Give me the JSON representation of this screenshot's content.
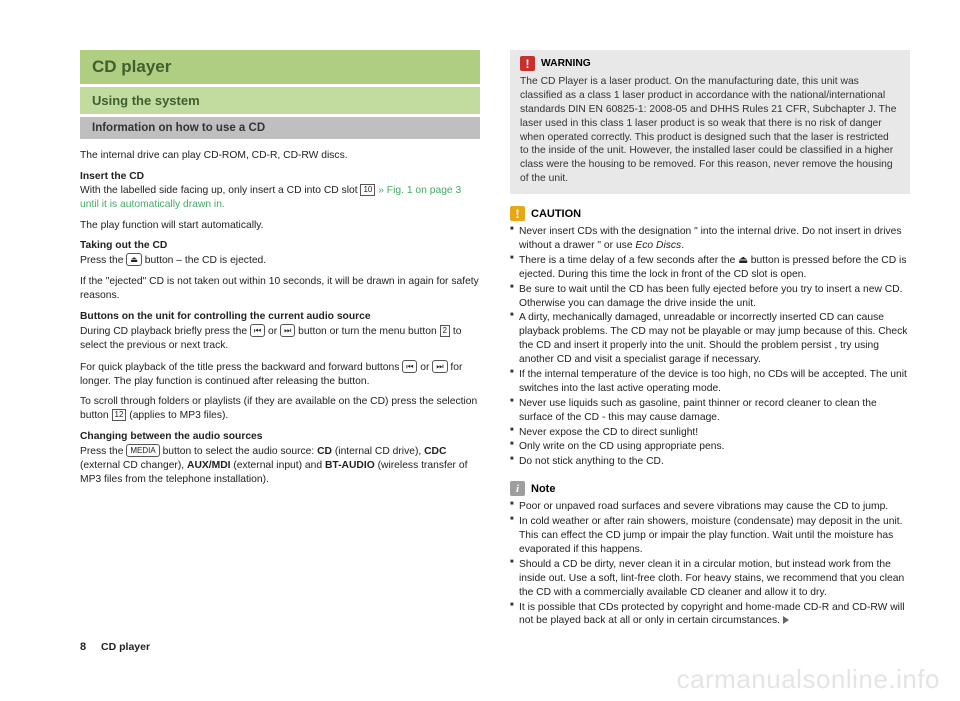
{
  "left": {
    "h1": "CD player",
    "h2": "Using the system",
    "h3": "Information on how to use a CD",
    "p1": "The internal drive can play CD-ROM, CD-R, CD-RW discs.",
    "insert_head": "Insert the CD",
    "insert_body_a": "With the labelled side facing up, only insert a CD into CD slot ",
    "insert_body_num": "10",
    "insert_body_b": " » Fig. 1 on page 3 until it is automatically drawn in.",
    "p2": "The play function will start automatically.",
    "takeout_head": "Taking out the CD",
    "takeout_body_a": "Press the ",
    "takeout_btn": "⏏",
    "takeout_body_b": " button – the CD is ejected.",
    "p3": "If the \"ejected\" CD is not taken out within 10 seconds, it will be drawn in again for safety reasons.",
    "btns_head": "Buttons on the unit for controlling the current audio source",
    "btns_body_a": "During CD playback briefly press the ",
    "btns_btn1": "⏮",
    "btns_mid": " or ",
    "btns_btn2": "⏭",
    "btns_body_b": " button or turn the menu button ",
    "btns_num": "2",
    "btns_body_c": " to select the previous or next track.",
    "p4_a": "For quick playback of the title press the backward and forward buttons ",
    "p4_b": " for longer. The play function is continued after releasing the button.",
    "p5_a": "To scroll through folders or playlists (if they are available on the CD) press the selection button ",
    "p5_num": "12",
    "p5_b": " (applies to MP3 files).",
    "chg_head": "Changing between the audio sources",
    "chg_body_a": "Press the ",
    "chg_btn": "MEDIA",
    "chg_body_b": " button to select the audio source: ",
    "chg_cd": "CD",
    "chg_cd2": " (internal CD drive), ",
    "chg_cdc": "CDC",
    "chg_cdc2": " (external CD changer), ",
    "chg_aux": "AUX/MDI",
    "chg_aux2": " (external input) and ",
    "chg_bt": "BT-AUDIO",
    "chg_bt2": " (wireless transfer of MP3 files from the telephone installation)."
  },
  "right": {
    "warning_title": "WARNING",
    "warning_body": "The CD Player is a laser product. On the manufacturing date, this unit was classified as a class 1 laser product in accordance with the national/international standards DIN EN 60825-1: 2008-05 and DHHS Rules 21 CFR, Subchapter J. The laser used in this class 1 laser product is so weak that there is no risk of danger when operated correctly. This product is designed such that the laser is restricted to the inside of the unit. However, the installed laser could be classified in a higher class were the housing to be removed. For this reason, never remove the housing of the unit.",
    "caution_title": "CAUTION",
    "caution_items_a": "Never insert CDs with the designation \" into the internal drive. Do not insert in drives without a drawer \" or use ",
    "caution_items_a_em": "Eco Discs",
    "caution_items": [
      "There is a time delay of a few seconds after the ⏏ button is pressed before the CD is ejected. During this time the lock in front of the CD slot is open.",
      "Be sure to wait until the CD has been fully ejected before you try to insert a new CD. Otherwise you can damage the drive inside the unit.",
      "A dirty, mechanically damaged, unreadable or incorrectly inserted CD can cause playback problems. The CD may not be playable or may jump because of this. Check the CD and insert it properly into the unit. Should the problem persist , try using another CD and visit a specialist garage if necessary.",
      "If the internal temperature of the device is too high, no CDs will be accepted. The unit switches into the last active operating mode.",
      "Never use liquids such as gasoline, paint thinner or record cleaner to clean the surface of the CD - this may cause damage.",
      "Never expose the CD to direct sunlight!",
      "Only write on the CD using appropriate pens.",
      "Do not stick anything to the CD."
    ],
    "note_title": "Note",
    "note_items": [
      "Poor or unpaved road surfaces and severe vibrations may cause the CD to jump.",
      "In cold weather or after rain showers, moisture (condensate) may deposit in the unit. This can effect the CD jump or impair the play function. Wait until the moisture has evaporated if this happens.",
      "Should a CD be dirty, never clean it in a circular motion, but instead work from the inside out. Use a soft, lint-free cloth. For heavy stains, we recommend that you clean the CD with a commercially available CD cleaner and allow it to dry.",
      "It is possible that CDs protected by copyright and home-made CD-R and CD-RW will not be played back at all or only in certain circumstances."
    ]
  },
  "footer": {
    "page": "8",
    "section": "CD player"
  },
  "watermark": "carmanualsonline.info"
}
